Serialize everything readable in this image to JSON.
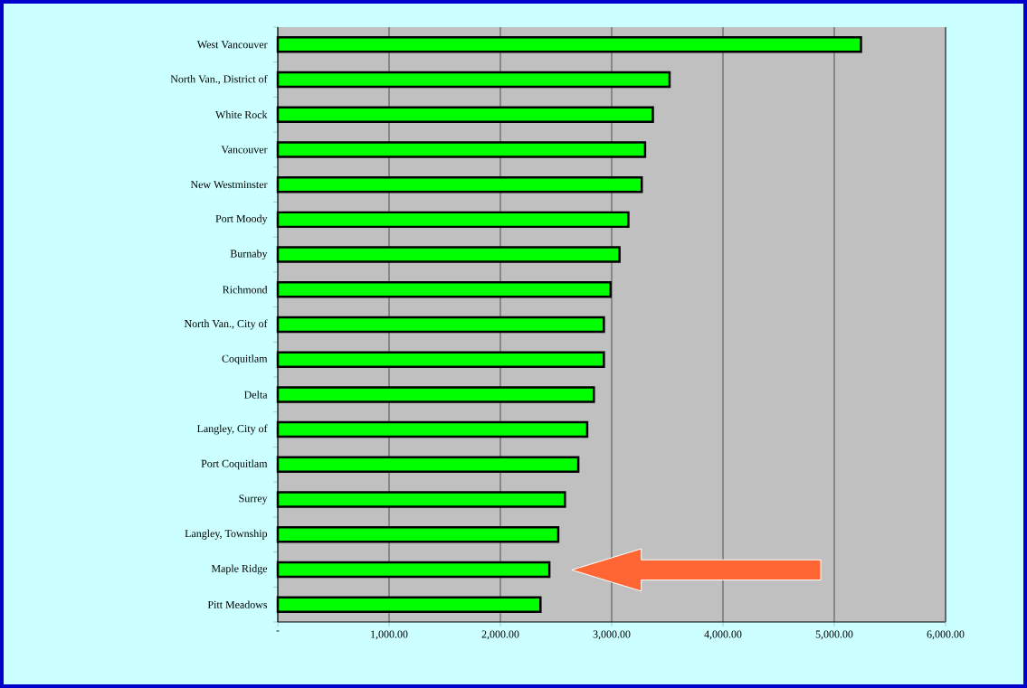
{
  "chart_data": {
    "type": "bar",
    "orientation": "horizontal",
    "categories": [
      "West Vancouver",
      "North Van., District of",
      "White Rock",
      "Vancouver",
      "New Westminster",
      "Port Moody",
      "Burnaby",
      "Richmond",
      "North Van., City of",
      "Coquitlam",
      "Delta",
      "Langley, City of",
      "Port Coquitlam",
      "Surrey",
      "Langley, Township",
      "Maple Ridge",
      "Pitt Meadows"
    ],
    "values": [
      5240,
      3520,
      3370,
      3300,
      3270,
      3150,
      3070,
      2990,
      2930,
      2930,
      2840,
      2780,
      2700,
      2580,
      2520,
      2440,
      2360
    ],
    "color": "#00ff00",
    "xlim": [
      0,
      6000
    ],
    "xticks": [
      {
        "value": 0,
        "label": "-"
      },
      {
        "value": 1000,
        "label": "1,000.00"
      },
      {
        "value": 2000,
        "label": "2,000.00"
      },
      {
        "value": 3000,
        "label": "3,000.00"
      },
      {
        "value": 4000,
        "label": "4,000.00"
      },
      {
        "value": 5000,
        "label": "5,000.00"
      },
      {
        "value": 6000,
        "label": "6,000.00"
      }
    ],
    "grid": "x"
  }
}
